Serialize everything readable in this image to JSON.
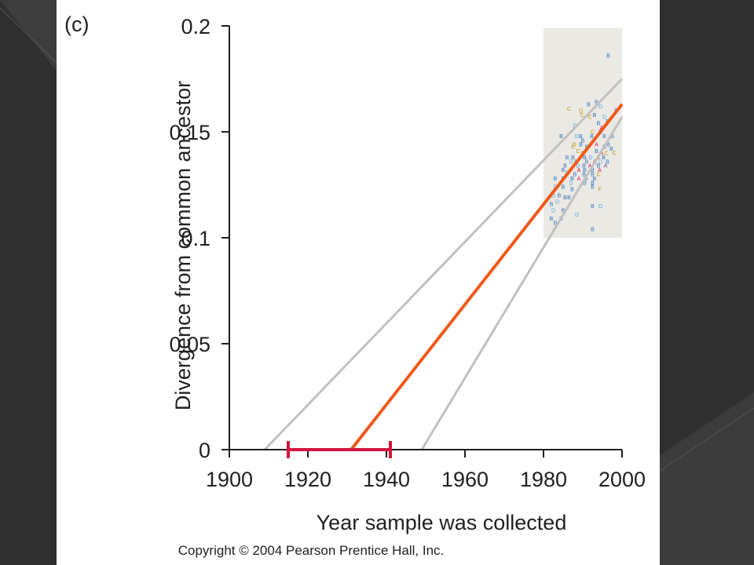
{
  "panel_label": "(c)",
  "copyright": "Copyright © 2004 Pearson Prentice Hall, Inc.",
  "colors": {
    "slide_background": "#2f2f2f",
    "panel_background": "#ffffff",
    "sample_box": "#ebe9e4",
    "regression_line": "#ef5a1c",
    "confidence_lines": "#c2c0c0",
    "interval_bar": "#d3143c",
    "axis": "#231f20",
    "point_blue": "#2a6fbd",
    "point_lightblue": "#4fa3d9",
    "point_yellow": "#b8950c",
    "point_red": "#d3143c",
    "point_purple": "#7a3a9a"
  },
  "chart_data": {
    "type": "scatter",
    "title": "",
    "xlabel": "Year sample was collected",
    "ylabel": "Divergence from common ancestor",
    "xlim": [
      1900,
      2000
    ],
    "ylim": [
      0,
      0.2
    ],
    "xticks": [
      1900,
      1920,
      1940,
      1960,
      1980,
      2000
    ],
    "xtick_labels": [
      "1900",
      "1920",
      "1940",
      "1960",
      "1980",
      "2000"
    ],
    "yticks": [
      0,
      0.05,
      0.1,
      0.15,
      0.2
    ],
    "ytick_labels": [
      "0",
      "0.05",
      "0.1",
      "0.15",
      "0.2"
    ],
    "grid": false,
    "sample_region": {
      "x": [
        1980,
        2000
      ],
      "y": [
        0.1,
        0.199
      ]
    },
    "regression_line": {
      "x": [
        1931,
        2000
      ],
      "y": [
        0,
        0.163
      ]
    },
    "confidence_bounds": [
      {
        "x": [
          1909,
          2000
        ],
        "y": [
          0,
          0.175
        ]
      },
      {
        "x": [
          1949,
          2000
        ],
        "y": [
          0,
          0.157
        ]
      }
    ],
    "root_interval": {
      "x": [
        1915,
        1941
      ],
      "y": 0
    },
    "points": [
      {
        "x": 1996.5,
        "y": 0.186,
        "label": "B",
        "color": "blue"
      },
      {
        "x": 1986.5,
        "y": 0.161,
        "label": "C",
        "color": "yellow"
      },
      {
        "x": 1991.5,
        "y": 0.163,
        "label": "B",
        "color": "blue"
      },
      {
        "x": 1993.5,
        "y": 0.164,
        "label": "B",
        "color": "blue"
      },
      {
        "x": 1994.5,
        "y": 0.162,
        "label": "D",
        "color": "lightblue"
      },
      {
        "x": 1998.5,
        "y": 0.16,
        "label": "B",
        "color": "blue"
      },
      {
        "x": 1991.8,
        "y": 0.157,
        "label": "C",
        "color": "yellow"
      },
      {
        "x": 1993.0,
        "y": 0.158,
        "label": "B",
        "color": "blue"
      },
      {
        "x": 1995.5,
        "y": 0.157,
        "label": "D",
        "color": "lightblue"
      },
      {
        "x": 1989.5,
        "y": 0.16,
        "label": "D",
        "color": "yellow"
      },
      {
        "x": 1989.8,
        "y": 0.158,
        "label": "C",
        "color": "yellow"
      },
      {
        "x": 1996.3,
        "y": 0.155,
        "label": "B",
        "color": "blue"
      },
      {
        "x": 1994.0,
        "y": 0.154,
        "label": "B",
        "color": "blue"
      },
      {
        "x": 1994.8,
        "y": 0.152,
        "label": "A",
        "color": "red"
      },
      {
        "x": 1988.0,
        "y": 0.153,
        "label": "D",
        "color": "lightblue"
      },
      {
        "x": 1992.5,
        "y": 0.15,
        "label": "C",
        "color": "yellow"
      },
      {
        "x": 1994.5,
        "y": 0.15,
        "label": "B",
        "color": "blue"
      },
      {
        "x": 1984.5,
        "y": 0.148,
        "label": "B",
        "color": "blue"
      },
      {
        "x": 1988.5,
        "y": 0.148,
        "label": "D",
        "color": "lightblue"
      },
      {
        "x": 1989.5,
        "y": 0.148,
        "label": "B",
        "color": "blue"
      },
      {
        "x": 1992.3,
        "y": 0.148,
        "label": "B",
        "color": "blue"
      },
      {
        "x": 1995.5,
        "y": 0.148,
        "label": "B",
        "color": "blue"
      },
      {
        "x": 1997.5,
        "y": 0.148,
        "label": "B",
        "color": "blue"
      },
      {
        "x": 1990.0,
        "y": 0.146,
        "label": "B",
        "color": "blue"
      },
      {
        "x": 1987.8,
        "y": 0.144,
        "label": "D",
        "color": "yellow"
      },
      {
        "x": 1989.5,
        "y": 0.144,
        "label": "B",
        "color": "blue"
      },
      {
        "x": 1993.5,
        "y": 0.144,
        "label": "A",
        "color": "red"
      },
      {
        "x": 1996.5,
        "y": 0.144,
        "label": "B",
        "color": "blue"
      },
      {
        "x": 1987.5,
        "y": 0.143,
        "label": "C",
        "color": "yellow"
      },
      {
        "x": 1991.0,
        "y": 0.143,
        "label": "B",
        "color": "blue"
      },
      {
        "x": 1995.5,
        "y": 0.143,
        "label": "B",
        "color": "blue"
      },
      {
        "x": 1997.3,
        "y": 0.142,
        "label": "B",
        "color": "blue"
      },
      {
        "x": 1988.8,
        "y": 0.141,
        "label": "C",
        "color": "yellow"
      },
      {
        "x": 1990.0,
        "y": 0.14,
        "label": "C",
        "color": "yellow"
      },
      {
        "x": 1993.5,
        "y": 0.141,
        "label": "B",
        "color": "blue"
      },
      {
        "x": 1994.8,
        "y": 0.14,
        "label": "A",
        "color": "red"
      },
      {
        "x": 1996.0,
        "y": 0.14,
        "label": "C",
        "color": "yellow"
      },
      {
        "x": 1998.0,
        "y": 0.14,
        "label": "C",
        "color": "yellow"
      },
      {
        "x": 1986.0,
        "y": 0.138,
        "label": "B",
        "color": "blue"
      },
      {
        "x": 1987.5,
        "y": 0.138,
        "label": "B",
        "color": "blue"
      },
      {
        "x": 1990.5,
        "y": 0.138,
        "label": "B",
        "color": "blue"
      },
      {
        "x": 1992.0,
        "y": 0.138,
        "label": "D",
        "color": "lightblue"
      },
      {
        "x": 1993.8,
        "y": 0.138,
        "label": "A",
        "color": "red"
      },
      {
        "x": 1995.3,
        "y": 0.138,
        "label": "B",
        "color": "blue"
      },
      {
        "x": 1987.0,
        "y": 0.136,
        "label": "D",
        "color": "lightblue"
      },
      {
        "x": 1988.3,
        "y": 0.136,
        "label": "B",
        "color": "blue"
      },
      {
        "x": 1991.0,
        "y": 0.136,
        "label": "B",
        "color": "blue"
      },
      {
        "x": 1993.0,
        "y": 0.136,
        "label": "A",
        "color": "red"
      },
      {
        "x": 1994.5,
        "y": 0.136,
        "label": "D",
        "color": "lightblue"
      },
      {
        "x": 1996.3,
        "y": 0.136,
        "label": "B",
        "color": "blue"
      },
      {
        "x": 1985.5,
        "y": 0.134,
        "label": "B",
        "color": "blue"
      },
      {
        "x": 1988.8,
        "y": 0.134,
        "label": "D",
        "color": "lightblue"
      },
      {
        "x": 1990.3,
        "y": 0.134,
        "label": "B",
        "color": "blue"
      },
      {
        "x": 1991.8,
        "y": 0.134,
        "label": "A",
        "color": "red"
      },
      {
        "x": 1994.0,
        "y": 0.134,
        "label": "B",
        "color": "blue"
      },
      {
        "x": 1995.8,
        "y": 0.134,
        "label": "A",
        "color": "purple"
      },
      {
        "x": 1985.0,
        "y": 0.132,
        "label": "B",
        "color": "blue"
      },
      {
        "x": 1989.0,
        "y": 0.132,
        "label": "A",
        "color": "red"
      },
      {
        "x": 1990.5,
        "y": 0.132,
        "label": "B",
        "color": "blue"
      },
      {
        "x": 1992.5,
        "y": 0.132,
        "label": "B",
        "color": "blue"
      },
      {
        "x": 1994.3,
        "y": 0.132,
        "label": "A",
        "color": "red"
      },
      {
        "x": 1986.0,
        "y": 0.131,
        "label": "D",
        "color": "lightblue"
      },
      {
        "x": 1988.0,
        "y": 0.13,
        "label": "B",
        "color": "blue"
      },
      {
        "x": 1990.3,
        "y": 0.13,
        "label": "B",
        "color": "blue"
      },
      {
        "x": 1992.5,
        "y": 0.13,
        "label": "B",
        "color": "blue"
      },
      {
        "x": 1994.0,
        "y": 0.13,
        "label": "C",
        "color": "yellow"
      },
      {
        "x": 1983.0,
        "y": 0.128,
        "label": "B",
        "color": "blue"
      },
      {
        "x": 1985.0,
        "y": 0.128,
        "label": "B",
        "color": "blue"
      },
      {
        "x": 1987.3,
        "y": 0.128,
        "label": "B",
        "color": "blue"
      },
      {
        "x": 1989.0,
        "y": 0.128,
        "label": "A",
        "color": "red"
      },
      {
        "x": 1990.8,
        "y": 0.128,
        "label": "B",
        "color": "blue"
      },
      {
        "x": 1993.0,
        "y": 0.128,
        "label": "B",
        "color": "blue"
      },
      {
        "x": 1987.0,
        "y": 0.126,
        "label": "D",
        "color": "lightblue"
      },
      {
        "x": 1990.5,
        "y": 0.126,
        "label": "B",
        "color": "blue"
      },
      {
        "x": 1992.5,
        "y": 0.126,
        "label": "B",
        "color": "blue"
      },
      {
        "x": 1983.0,
        "y": 0.124,
        "label": "D",
        "color": "lightblue"
      },
      {
        "x": 1985.0,
        "y": 0.124,
        "label": "B",
        "color": "blue"
      },
      {
        "x": 1987.3,
        "y": 0.123,
        "label": "B",
        "color": "blue"
      },
      {
        "x": 1992.5,
        "y": 0.124,
        "label": "B",
        "color": "blue"
      },
      {
        "x": 1994.3,
        "y": 0.123,
        "label": "F",
        "color": "yellow"
      },
      {
        "x": 1982.5,
        "y": 0.12,
        "label": "D",
        "color": "lightblue"
      },
      {
        "x": 1984.0,
        "y": 0.12,
        "label": "B",
        "color": "blue"
      },
      {
        "x": 1985.5,
        "y": 0.119,
        "label": "B",
        "color": "blue"
      },
      {
        "x": 1986.5,
        "y": 0.119,
        "label": "B",
        "color": "blue"
      },
      {
        "x": 1982.0,
        "y": 0.116,
        "label": "B",
        "color": "blue"
      },
      {
        "x": 1983.5,
        "y": 0.117,
        "label": "D",
        "color": "lightblue"
      },
      {
        "x": 1985.0,
        "y": 0.113,
        "label": "B",
        "color": "blue"
      },
      {
        "x": 1982.5,
        "y": 0.113,
        "label": "D",
        "color": "lightblue"
      },
      {
        "x": 1988.5,
        "y": 0.111,
        "label": "D",
        "color": "lightblue"
      },
      {
        "x": 1982.0,
        "y": 0.109,
        "label": "B",
        "color": "blue"
      },
      {
        "x": 1984.5,
        "y": 0.109,
        "label": "B",
        "color": "blue"
      },
      {
        "x": 1983.0,
        "y": 0.107,
        "label": "B",
        "color": "blue"
      },
      {
        "x": 1992.5,
        "y": 0.115,
        "label": "B",
        "color": "blue"
      },
      {
        "x": 1994.5,
        "y": 0.115,
        "label": "D",
        "color": "lightblue"
      },
      {
        "x": 1992.5,
        "y": 0.104,
        "label": "B",
        "color": "blue"
      }
    ]
  }
}
